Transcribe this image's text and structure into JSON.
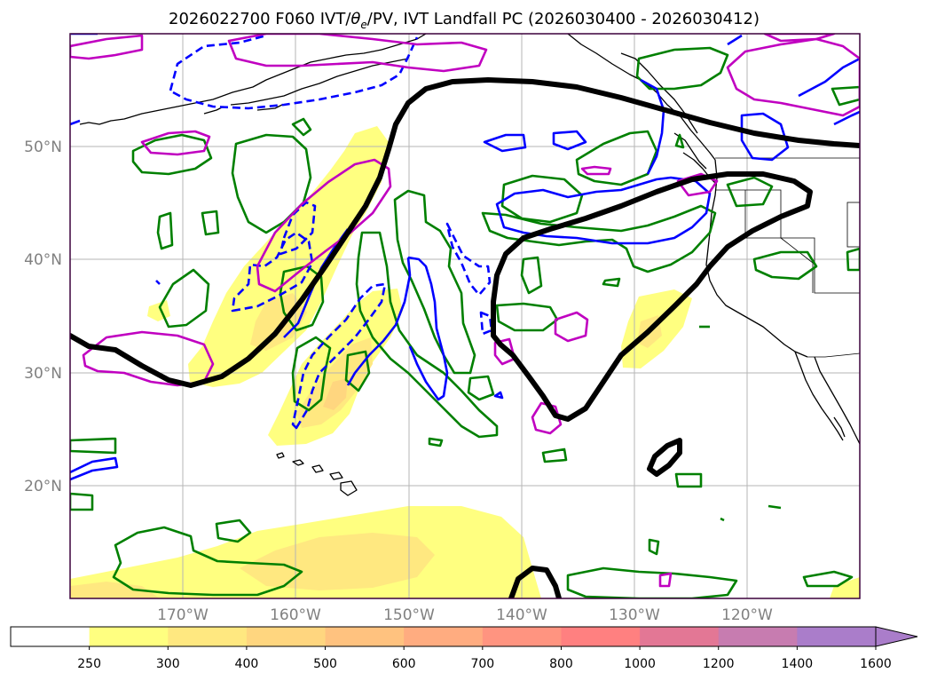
{
  "title": "2026022700 F060 IVT/θe/PV, IVT Landfall PC (2026030400 - 2026030412)",
  "title_parts": {
    "prefix": "2026022700 F060 IVT/",
    "theta": "θ",
    "theta_sub": "e",
    "suffix": "/PV, IVT Landfall PC (2026030400 - 2026030412)"
  },
  "map": {
    "latitude_labels": [
      "50°N",
      "40°N",
      "30°N",
      "20°N"
    ],
    "longitude_labels": [
      "170°W",
      "160°W",
      "150°W",
      "140°W",
      "130°W",
      "120°W"
    ],
    "frame_color": "#3b003b"
  },
  "colorbar": {
    "tick_labels": [
      "250",
      "300",
      "400",
      "500",
      "600",
      "700",
      "800",
      "1000",
      "1200",
      "1400",
      "1600"
    ],
    "colors": [
      "#ffffff",
      "#ffff80",
      "#ffe880",
      "#ffd67f",
      "#ffc27f",
      "#ffac80",
      "#ff9480",
      "#ff8080",
      "#e37795",
      "#c77cb0",
      "#aa7dca"
    ],
    "extend": "max"
  },
  "contour_colors": {
    "theta_e_green": "#008000",
    "pv_blue": "#0000ff",
    "pv_magenta": "#c000c0",
    "landfall_pc_black": "#000000"
  }
}
